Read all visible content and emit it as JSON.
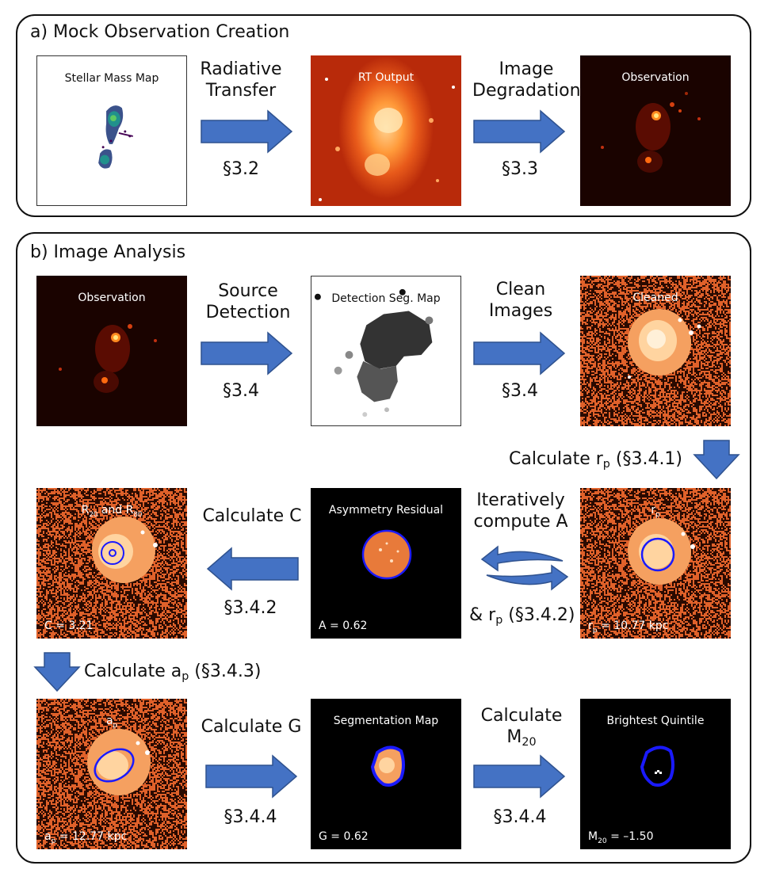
{
  "panel_a": {
    "title": "a) Mock Observation Creation",
    "stellar_mass_caption": "Stellar Mass Map",
    "step1_label_line1": "Radiative",
    "step1_label_line2": "Transfer",
    "step1_section": "§3.2",
    "rt_output_caption": "RT Output",
    "step2_label_line1": "Image",
    "step2_label_line2": "Degradation",
    "step2_section": "§3.3",
    "observation_caption": "Observation"
  },
  "panel_b": {
    "title": "b) Image Analysis",
    "observation_caption": "Observation",
    "source_label_line1": "Source",
    "source_label_line2": "Detection",
    "source_section": "§3.4",
    "seg_map_caption": "Detection Seg. Map",
    "clean_label_line1": "Clean",
    "clean_label_line2": "Images",
    "clean_section": "§3.4",
    "cleaned_caption": "Cleaned",
    "calc_rp_prefix": "Calculate r",
    "calc_rp_sub": "p",
    "calc_rp_suffix": " (§3.4.1)",
    "rp_caption_main": "r",
    "rp_caption_sub": "p",
    "rp_stat_main": "r",
    "rp_stat_sub": "p",
    "rp_stat_value": " = 10.77 kpc",
    "iter_label_line1": "Iteratively",
    "iter_label_line2": "compute A",
    "iter_rp_prefix": "& r",
    "iter_rp_sub": "p",
    "iter_rp_suffix": " (§3.4.2)",
    "asym_caption": "Asymmetry Residual",
    "asym_stat": "A = 0.62",
    "calc_c_label": "Calculate C",
    "calc_c_section": "§3.4.2",
    "r2080_caption_r1": "R",
    "r2080_caption_sub1": "20",
    "r2080_caption_mid": " and R",
    "r2080_caption_sub2": "80",
    "c_stat": "C = 3.21",
    "calc_ap_prefix": "Calculate a",
    "calc_ap_sub": "p",
    "calc_ap_suffix": " (§3.4.3)",
    "ap_caption_main": "a",
    "ap_caption_sub": "p",
    "ap_stat_main": "a",
    "ap_stat_sub": "p",
    "ap_stat_value": " = 12.77 kpc",
    "calc_g_label": "Calculate G",
    "calc_g_section": "§3.4.4",
    "segmap_caption": "Segmentation Map",
    "g_stat": "G = 0.62",
    "calc_m20_line1": "Calculate",
    "calc_m20_main": "M",
    "calc_m20_sub": "20",
    "calc_m20_section": "§3.4.4",
    "quintile_caption": "Brightest Quintile",
    "m20_stat_main": "M",
    "m20_stat_sub": "20",
    "m20_stat_value": " = –1.50"
  },
  "colors": {
    "arrow_fill": "#4472c4",
    "arrow_stroke": "#2f528f",
    "aperture": "#1a1aff",
    "noise_orange": "#e0612a",
    "noise_dark": "#2a0a00"
  }
}
